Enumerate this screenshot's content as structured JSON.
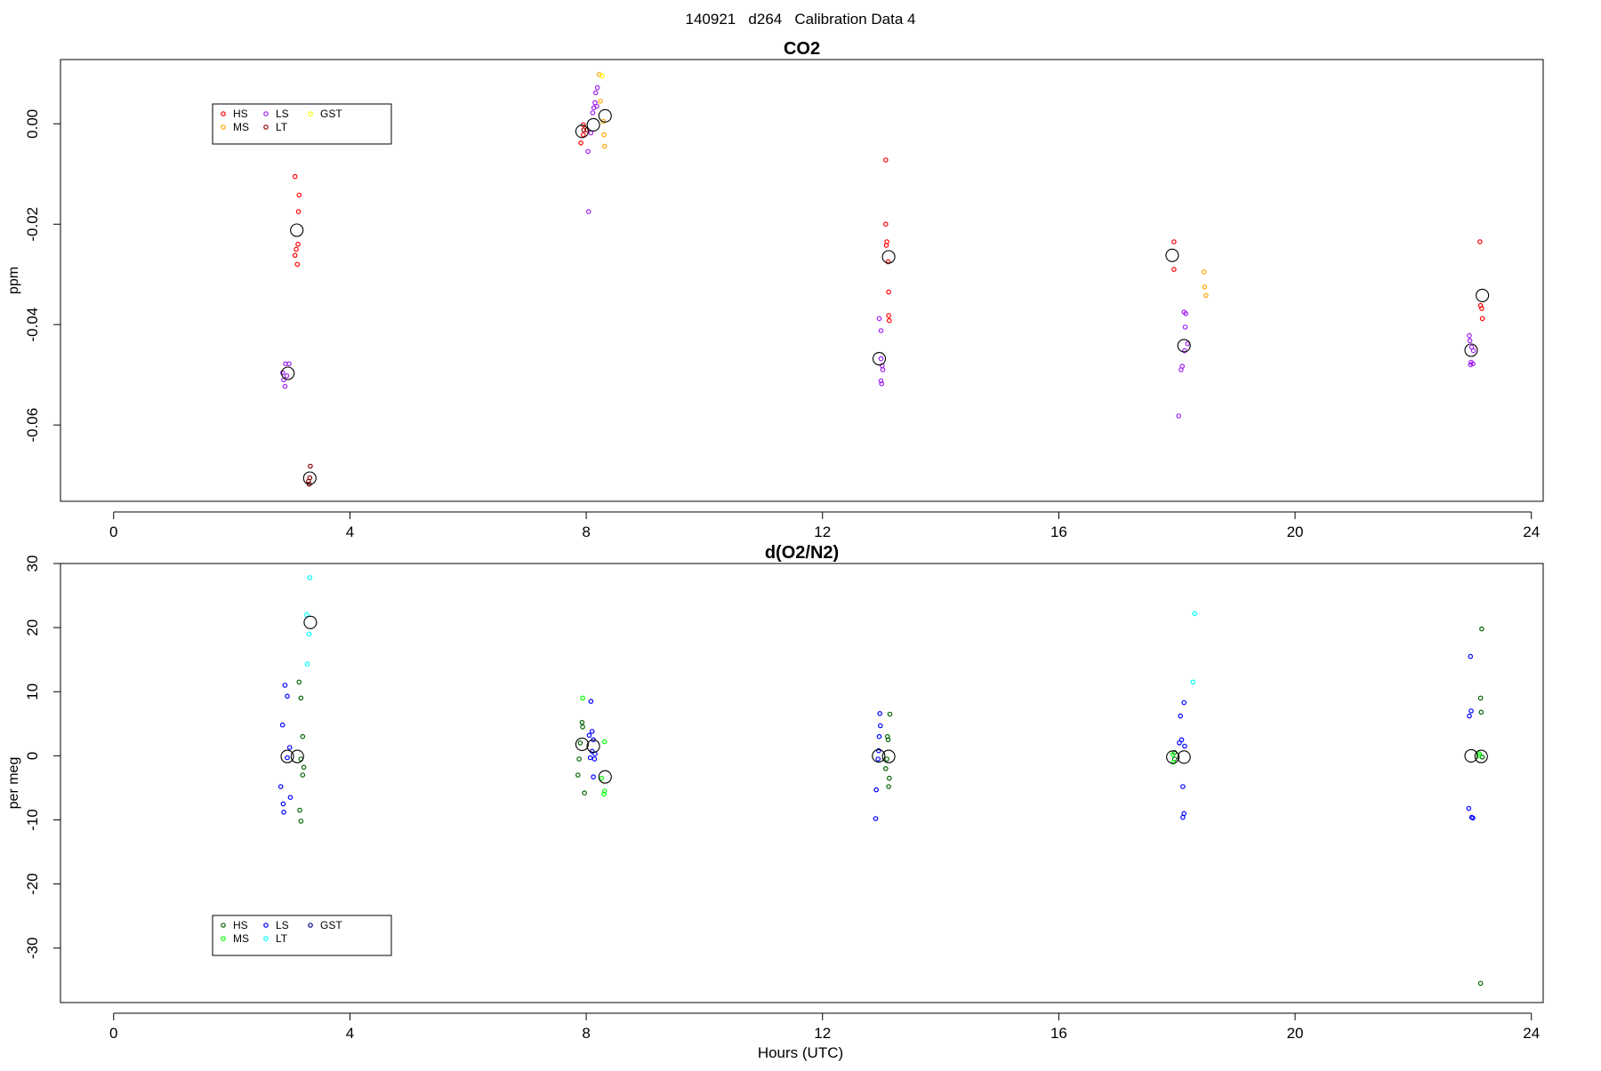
{
  "page_title": "140921   d264   Calibration Data 4",
  "x_axis_label": "Hours (UTC)",
  "chart_data": [
    {
      "type": "scatter",
      "title": "CO2",
      "xlabel": "",
      "ylabel": "ppm",
      "xlim": [
        -0.9,
        24.2
      ],
      "ylim": [
        -0.0752,
        0.0128
      ],
      "x_ticks": [
        0,
        4,
        8,
        12,
        16,
        20,
        24
      ],
      "y_ticks": [
        0.0,
        -0.02,
        -0.04,
        -0.06
      ],
      "y_tick_labels": [
        "0.00",
        "-0.02",
        "-0.04",
        "-0.06"
      ],
      "legend": {
        "placement": "top-left",
        "entries": [
          {
            "label": "HS",
            "color": "#ff0000"
          },
          {
            "label": "MS",
            "color": "#ffa500"
          },
          {
            "label": "LS",
            "color": "#a020f0"
          },
          {
            "label": "LT",
            "color": "#8b0000"
          },
          {
            "label": "GST",
            "color": "#ffff00"
          }
        ]
      },
      "series": [
        {
          "color": "#ff0000",
          "points": [
            [
              3.07,
              -0.0105
            ],
            [
              3.14,
              -0.0142
            ],
            [
              3.13,
              -0.0175
            ],
            [
              3.12,
              -0.024
            ],
            [
              3.09,
              -0.025
            ],
            [
              3.07,
              -0.0262
            ],
            [
              3.11,
              -0.028
            ],
            [
              7.95,
              -0.0002
            ],
            [
              7.95,
              -0.0022
            ],
            [
              8.01,
              -0.0012
            ],
            [
              7.91,
              -0.0038
            ],
            [
              13.07,
              -0.0072
            ],
            [
              13.07,
              -0.02
            ],
            [
              13.09,
              -0.0235
            ],
            [
              13.08,
              -0.0242
            ],
            [
              13.11,
              -0.0275
            ],
            [
              13.12,
              -0.0335
            ],
            [
              13.12,
              -0.0382
            ],
            [
              13.13,
              -0.0392
            ],
            [
              17.95,
              -0.0235
            ],
            [
              17.95,
              -0.029
            ],
            [
              23.13,
              -0.0235
            ],
            [
              23.14,
              -0.0362
            ],
            [
              23.16,
              -0.0368
            ],
            [
              23.17,
              -0.0388
            ]
          ]
        },
        {
          "color": "#ffa500",
          "points": [
            [
              8.22,
              0.0098
            ],
            [
              8.24,
              0.0045
            ],
            [
              8.29,
              0.0005
            ],
            [
              8.3,
              -0.0022
            ],
            [
              8.31,
              -0.0045
            ],
            [
              18.46,
              -0.0295
            ],
            [
              18.47,
              -0.0325
            ],
            [
              18.49,
              -0.0342
            ]
          ]
        },
        {
          "color": "#a020f0",
          "points": [
            [
              2.91,
              -0.0478
            ],
            [
              2.97,
              -0.0478
            ],
            [
              2.86,
              -0.0496
            ],
            [
              2.93,
              -0.0502
            ],
            [
              2.88,
              -0.051
            ],
            [
              2.9,
              -0.0523
            ],
            [
              8.04,
              -0.0175
            ],
            [
              8.03,
              -0.0055
            ],
            [
              8.08,
              -0.0018
            ],
            [
              8.11,
              0.0022
            ],
            [
              8.13,
              0.0032
            ],
            [
              8.16,
              0.0062
            ],
            [
              8.19,
              0.0072
            ],
            [
              8.15,
              0.0042
            ],
            [
              8.18,
              0.0035
            ],
            [
              12.96,
              -0.0388
            ],
            [
              12.99,
              -0.0412
            ],
            [
              12.99,
              -0.0468
            ],
            [
              13.01,
              -0.0482
            ],
            [
              13.02,
              -0.049
            ],
            [
              12.99,
              -0.0512
            ],
            [
              13.0,
              -0.0518
            ],
            [
              18.12,
              -0.0375
            ],
            [
              18.15,
              -0.0378
            ],
            [
              18.14,
              -0.0405
            ],
            [
              18.18,
              -0.0438
            ],
            [
              18.13,
              -0.0452
            ],
            [
              18.09,
              -0.0483
            ],
            [
              18.07,
              -0.049
            ],
            [
              18.03,
              -0.0582
            ],
            [
              22.95,
              -0.0422
            ],
            [
              22.96,
              -0.0432
            ],
            [
              22.99,
              -0.0445
            ],
            [
              23.02,
              -0.0452
            ],
            [
              22.98,
              -0.0475
            ],
            [
              23.01,
              -0.0478
            ],
            [
              22.97,
              -0.048
            ]
          ]
        },
        {
          "color": "#8b0000",
          "points": [
            [
              3.33,
              -0.0682
            ],
            [
              3.32,
              -0.0705
            ],
            [
              3.3,
              -0.0712
            ],
            [
              3.31,
              -0.0718
            ],
            [
              7.96,
              -0.0012
            ]
          ]
        },
        {
          "color": "#ffff00",
          "points": [
            [
              8.27,
              0.0096
            ]
          ]
        }
      ],
      "means": [
        [
          3.1,
          -0.0212
        ],
        [
          2.95,
          -0.0497
        ],
        [
          3.32,
          -0.0706
        ],
        [
          7.93,
          -0.0015
        ],
        [
          8.12,
          -0.0002
        ],
        [
          8.32,
          0.0016
        ],
        [
          12.96,
          -0.0468
        ],
        [
          13.12,
          -0.0265
        ],
        [
          17.92,
          -0.0262
        ],
        [
          18.12,
          -0.0442
        ],
        [
          22.98,
          -0.0451
        ],
        [
          23.17,
          -0.0342
        ]
      ]
    },
    {
      "type": "scatter",
      "title": "d(O2/N2)",
      "xlabel": "Hours (UTC)",
      "ylabel": "per meg",
      "xlim": [
        -0.9,
        24.2
      ],
      "ylim": [
        -38.5,
        30.0
      ],
      "x_ticks": [
        0,
        4,
        8,
        12,
        16,
        20,
        24
      ],
      "y_ticks": [
        30,
        20,
        10,
        0,
        -10,
        -20,
        -30
      ],
      "y_tick_labels": [
        "30",
        "20",
        "10",
        "0",
        "-10",
        "-20",
        "-30"
      ],
      "legend": {
        "placement": "bottom-left",
        "entries": [
          {
            "label": "HS",
            "color": "#006400"
          },
          {
            "label": "MS",
            "color": "#00ff00"
          },
          {
            "label": "LS",
            "color": "#0000ff"
          },
          {
            "label": "LT",
            "color": "#00ffff"
          },
          {
            "label": "GST",
            "color": "#000080"
          }
        ]
      },
      "series": [
        {
          "color": "#006400",
          "points": [
            [
              3.14,
              11.5
            ],
            [
              3.17,
              9.0
            ],
            [
              3.2,
              3.0
            ],
            [
              3.17,
              -0.5
            ],
            [
              3.22,
              -1.8
            ],
            [
              3.2,
              -3.0
            ],
            [
              3.15,
              -8.5
            ],
            [
              3.17,
              -10.2
            ],
            [
              7.9,
              2.0
            ],
            [
              7.93,
              5.2
            ],
            [
              7.94,
              4.5
            ],
            [
              7.88,
              -0.5
            ],
            [
              7.86,
              -3.0
            ],
            [
              7.97,
              -5.8
            ],
            [
              13.1,
              3.0
            ],
            [
              13.11,
              2.5
            ],
            [
              13.09,
              -0.5
            ],
            [
              13.07,
              -2.0
            ],
            [
              13.13,
              -3.5
            ],
            [
              13.12,
              -4.8
            ],
            [
              13.14,
              6.5
            ],
            [
              17.96,
              0.5
            ],
            [
              17.96,
              -0.5
            ],
            [
              23.16,
              19.8
            ],
            [
              23.14,
              9.0
            ],
            [
              23.15,
              6.8
            ],
            [
              23.17,
              -0.2
            ],
            [
              23.14,
              -35.5
            ]
          ]
        },
        {
          "color": "#00ff00",
          "points": [
            [
              7.94,
              9.0
            ],
            [
              8.31,
              2.2
            ],
            [
              8.26,
              -3.5
            ],
            [
              8.31,
              -5.5
            ],
            [
              8.3,
              -6.0
            ],
            [
              17.93,
              0.2
            ],
            [
              17.94,
              -1.0
            ],
            [
              23.11,
              0.0
            ],
            [
              23.12,
              0.3
            ]
          ]
        },
        {
          "color": "#0000ff",
          "points": [
            [
              2.9,
              11.0
            ],
            [
              2.94,
              9.3
            ],
            [
              2.86,
              4.8
            ],
            [
              2.98,
              1.3
            ],
            [
              2.94,
              -0.3
            ],
            [
              2.83,
              -4.8
            ],
            [
              2.87,
              -7.5
            ],
            [
              2.99,
              -6.5
            ],
            [
              2.88,
              -8.8
            ],
            [
              8.08,
              8.5
            ],
            [
              8.1,
              3.8
            ],
            [
              8.05,
              3.2
            ],
            [
              8.12,
              2.5
            ],
            [
              8.1,
              0.7
            ],
            [
              8.07,
              -0.3
            ],
            [
              8.14,
              -0.5
            ],
            [
              8.15,
              0.3
            ],
            [
              8.12,
              -3.3
            ],
            [
              12.97,
              6.6
            ],
            [
              12.98,
              4.7
            ],
            [
              12.96,
              3.0
            ],
            [
              12.95,
              0.8
            ],
            [
              12.94,
              -0.5
            ],
            [
              12.91,
              -5.3
            ],
            [
              12.9,
              -9.8
            ],
            [
              18.12,
              8.3
            ],
            [
              18.06,
              6.2
            ],
            [
              18.08,
              2.5
            ],
            [
              18.04,
              2.0
            ],
            [
              18.13,
              1.5
            ],
            [
              18.1,
              -4.8
            ],
            [
              18.12,
              -9.0
            ],
            [
              18.1,
              -9.6
            ],
            [
              22.97,
              15.5
            ],
            [
              22.98,
              7.0
            ],
            [
              22.95,
              6.2
            ],
            [
              22.94,
              -8.2
            ],
            [
              22.99,
              -9.6
            ],
            [
              23.01,
              -9.7
            ]
          ]
        },
        {
          "color": "#00ffff",
          "points": [
            [
              3.32,
              27.8
            ],
            [
              3.27,
              22.0
            ],
            [
              3.31,
              19.0
            ],
            [
              3.28,
              14.3
            ],
            [
              18.3,
              22.2
            ],
            [
              18.27,
              11.5
            ]
          ]
        }
      ],
      "means": [
        [
          2.94,
          -0.1
        ],
        [
          3.11,
          -0.1
        ],
        [
          3.33,
          20.8
        ],
        [
          7.93,
          1.8
        ],
        [
          8.12,
          1.5
        ],
        [
          8.32,
          -3.3
        ],
        [
          12.95,
          0.0
        ],
        [
          13.12,
          -0.1
        ],
        [
          17.93,
          -0.2
        ],
        [
          18.12,
          -0.2
        ],
        [
          22.98,
          0.0
        ],
        [
          23.15,
          -0.1
        ]
      ]
    }
  ]
}
